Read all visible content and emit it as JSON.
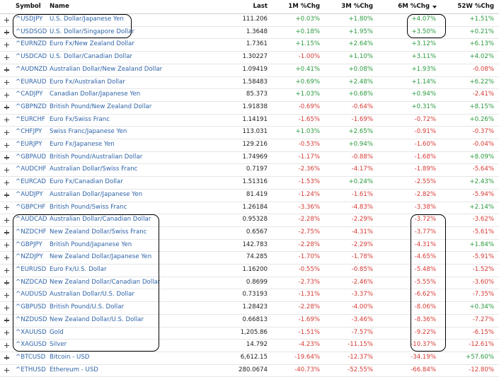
{
  "table": {
    "headers": [
      "Symbol",
      "Name",
      "Last",
      "1M %Chg",
      "3M %Chg",
      "6M %Chg",
      "52W %Chg"
    ],
    "rows": [
      [
        "^USDJPY",
        "U.S. Dollar/Japanese Yen",
        "111.206",
        "+0.03%",
        "+1.80%",
        "+4.07%",
        "+1.51%"
      ],
      [
        "^USDSGD",
        "U.S. Dollar/Singapore Dollar",
        "1.3648",
        "+0.18%",
        "+1.95%",
        "+3.50%",
        "+0.21%"
      ],
      [
        "^EURNZD",
        "Euro Fx/New Zealand Dollar",
        "1.7361",
        "+1.15%",
        "+2.64%",
        "+3.12%",
        "+6.13%"
      ],
      [
        "^USDCAD",
        "U.S. Dollar/Canadian Dollar",
        "1.30227",
        "-1.00%",
        "+1.10%",
        "+3.11%",
        "+4.02%"
      ],
      [
        "^AUDNZD",
        "Australian Dollar/New Zealand Dollar",
        "1.09419",
        "+0.41%",
        "+0.08%",
        "+1.93%",
        "-0.08%"
      ],
      [
        "^EURAUD",
        "Euro Fx/Australian Dollar",
        "1.58483",
        "+0.69%",
        "+2.48%",
        "+1.14%",
        "+6.22%"
      ],
      [
        "^CADJPY",
        "Canadian Dollar/Japanese Yen",
        "85.373",
        "+1.03%",
        "+0.68%",
        "+0.94%",
        "-2.41%"
      ],
      [
        "^GBPNZD",
        "British Pound/New Zealand Dollar",
        "1.91838",
        "-0.69%",
        "-0.64%",
        "+0.31%",
        "+8.15%"
      ],
      [
        "^EURCHF",
        "Euro Fx/Swiss Franc",
        "1.14191",
        "-1.65%",
        "-1.69%",
        "-0.72%",
        "+0.26%"
      ],
      [
        "^CHFJPY",
        "Swiss Franc/Japanese Yen",
        "113.031",
        "+1.03%",
        "+2.65%",
        "-0.91%",
        "-0.37%"
      ],
      [
        "^EURJPY",
        "Euro Fx/Japanese Yen",
        "129.216",
        "-0.53%",
        "+0.94%",
        "-1.60%",
        "-0.04%"
      ],
      [
        "^GBPAUD",
        "British Pound/Australian Dollar",
        "1.74969",
        "-1.17%",
        "-0.88%",
        "-1.68%",
        "+8.09%"
      ],
      [
        "^AUDCHF",
        "Australian Dollar/Swiss Franc",
        "0.7197",
        "-2.36%",
        "-4.17%",
        "-1.89%",
        "-5.64%"
      ],
      [
        "^EURCAD",
        "Euro Fx/Canadian Dollar",
        "1.51316",
        "-1.53%",
        "+0.24%",
        "-2.55%",
        "+2.43%"
      ],
      [
        "^AUDJPY",
        "Australian Dollar/Japanese Yen",
        "81.419",
        "-1.24%",
        "-1.61%",
        "-2.82%",
        "-5.94%"
      ],
      [
        "^GBPCHF",
        "British Pound/Swiss Franc",
        "1.26184",
        "-3.36%",
        "-4.83%",
        "-3.38%",
        "+2.14%"
      ],
      [
        "^AUDCAD",
        "Australian Dollar/Canadian Dollar",
        "0.95328",
        "-2.28%",
        "-2.29%",
        "-3.72%",
        "-3.62%"
      ],
      [
        "^NZDCHF",
        "New Zealand Dollar/Swiss Franc",
        "0.6567",
        "-2.75%",
        "-4.31%",
        "-3.77%",
        "-5.61%"
      ],
      [
        "^GBPJPY",
        "British Pound/Japanese Yen",
        "142.783",
        "-2.28%",
        "-2.29%",
        "-4.31%",
        "+1.84%"
      ],
      [
        "^NZDJPY",
        "New Zealand Dollar/Japanese Yen",
        "74.285",
        "-1.70%",
        "-1.78%",
        "-4.65%",
        "-5.91%"
      ],
      [
        "^EURUSD",
        "Euro Fx/U.S. Dollar",
        "1.16200",
        "-0.55%",
        "-0.85%",
        "-5.48%",
        "-1.52%"
      ],
      [
        "^NZDCAD",
        "New Zealand Dollar/Canadian Dollar",
        "0.8699",
        "-2.73%",
        "-2.46%",
        "-5.55%",
        "-3.60%"
      ],
      [
        "^AUDUSD",
        "Australian Dollar/U.S. Dollar",
        "0.73193",
        "-1.31%",
        "-3.37%",
        "-6.62%",
        "-7.35%"
      ],
      [
        "^GBPUSD",
        "British Pound/U.S. Dollar",
        "1.28423",
        "-2.28%",
        "-4.00%",
        "-8.06%",
        "+0.34%"
      ],
      [
        "^NZDUSD",
        "New Zealand Dollar/U.S. Dollar",
        "0.66813",
        "-1.69%",
        "-3.46%",
        "-8.36%",
        "-7.27%"
      ],
      [
        "^XAUUSD",
        "Gold",
        "1,205.86",
        "-1.51%",
        "-7.57%",
        "-9.22%",
        "-6.15%"
      ],
      [
        "^XAGUSD",
        "Silver",
        "14.792",
        "-4.23%",
        "-11.15%",
        "-10.37%",
        "-12.61%"
      ],
      [
        "^BTCUSD",
        "Bitcoin - USD",
        "6,612.15",
        "-19.64%",
        "-12.37%",
        "-34.19%",
        "+57.60%"
      ],
      [
        "^ETHUSD",
        "Ethereum - USD",
        "280.0674",
        "-40.73%",
        "-52.55%",
        "-66.84%",
        "-12.80%"
      ]
    ]
  }
}
